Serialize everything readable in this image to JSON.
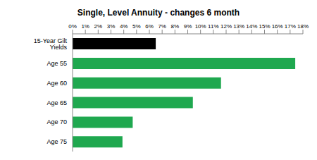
{
  "chart_data": {
    "type": "bar",
    "orientation": "horizontal",
    "title": "Single, Level Annuity - changes 6 month",
    "categories": [
      "15-Year Gilt Yields",
      "Age 55",
      "Age 60",
      "Age 65",
      "Age 70",
      "Age 75"
    ],
    "values": [
      6.5,
      17.4,
      11.6,
      9.4,
      4.7,
      3.9
    ],
    "colors": [
      "#000000",
      "#1fa84f",
      "#1fa84f",
      "#1fa84f",
      "#1fa84f",
      "#1fa84f"
    ],
    "xlim": [
      0,
      18
    ],
    "xticks": [
      {
        "value": 0,
        "label": "0%"
      },
      {
        "value": 1,
        "label": "1%"
      },
      {
        "value": 2,
        "label": "2%"
      },
      {
        "value": 3,
        "label": "3%"
      },
      {
        "value": 4,
        "label": "4%"
      },
      {
        "value": 5,
        "label": "5%"
      },
      {
        "value": 6,
        "label": "6%"
      },
      {
        "value": 7,
        "label": "7%"
      },
      {
        "value": 8,
        "label": "8%"
      },
      {
        "value": 9,
        "label": "9%"
      },
      {
        "value": 10,
        "label": "10%"
      },
      {
        "value": 11,
        "label": "11%"
      },
      {
        "value": 12,
        "label": "12%"
      },
      {
        "value": 13,
        "label": "13%"
      },
      {
        "value": 14,
        "label": "14%"
      },
      {
        "value": 15,
        "label": "15%"
      },
      {
        "value": 16,
        "label": "16%"
      },
      {
        "value": 17,
        "label": "17%"
      },
      {
        "value": 18,
        "label": "18%"
      }
    ],
    "grid": false
  }
}
